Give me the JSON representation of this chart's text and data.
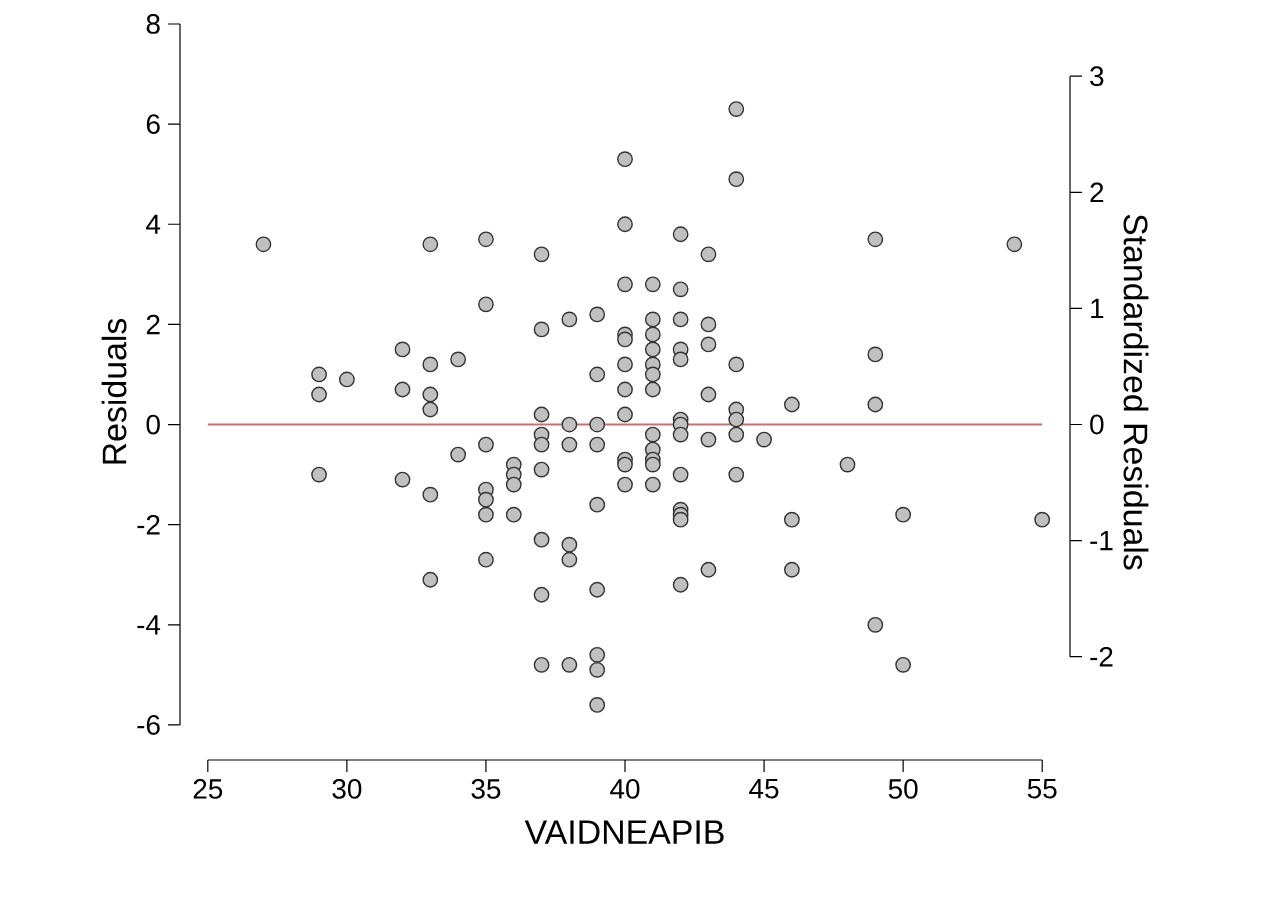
{
  "chart_data": {
    "type": "scatter",
    "xlabel": "VAIDNEAPIB",
    "ylabel": "Residuals",
    "y2label": "Standardized Residuals",
    "marker": "circle",
    "grid": false,
    "xlim": [
      24,
      56
    ],
    "ylim": [
      -6.7,
      8
    ],
    "y2lim": [
      -2.89,
      3.45
    ],
    "xticks": [
      25,
      30,
      35,
      40,
      45,
      50,
      55
    ],
    "yticks": [
      -6,
      -4,
      -2,
      0,
      2,
      4,
      6,
      8
    ],
    "y2ticks": [
      -2,
      -1,
      0,
      1,
      2,
      3
    ],
    "ref_lines": [
      {
        "axis": "y",
        "value": 0,
        "color": "#c87373"
      }
    ],
    "series": [
      {
        "color": "#c0c0c0",
        "x": [
          27,
          29,
          29,
          29,
          30,
          32,
          32,
          32,
          33,
          33,
          33,
          33,
          33,
          33,
          34,
          34,
          35,
          35,
          35,
          35,
          35,
          35,
          35,
          36,
          36,
          36,
          36,
          37,
          37,
          37,
          37,
          37,
          37,
          37,
          37,
          37,
          38,
          38,
          38,
          38,
          38,
          38,
          39,
          39,
          39,
          39,
          39,
          39,
          39,
          39,
          39,
          40,
          40,
          40,
          40,
          40,
          40,
          40,
          40,
          40,
          40,
          40,
          41,
          41,
          41,
          41,
          41,
          41,
          41,
          41,
          41,
          41,
          41,
          41,
          42,
          42,
          42,
          42,
          42,
          42,
          42,
          42,
          42,
          42,
          42,
          42,
          42,
          43,
          43,
          43,
          43,
          43,
          43,
          44,
          44,
          44,
          44,
          44,
          44,
          44,
          45,
          46,
          46,
          46,
          48,
          49,
          49,
          49,
          49,
          50,
          50,
          54,
          55
        ],
        "values": [
          3.6,
          1.0,
          0.6,
          -1.0,
          0.9,
          1.5,
          0.7,
          -1.1,
          3.6,
          1.2,
          0.6,
          0.3,
          -1.4,
          -3.1,
          1.3,
          -0.6,
          3.7,
          2.4,
          -0.4,
          -1.3,
          -1.5,
          -1.8,
          -2.7,
          -0.8,
          -1.0,
          -1.2,
          -1.8,
          3.4,
          1.9,
          0.2,
          -0.2,
          -0.4,
          -0.9,
          -2.3,
          -3.4,
          -4.8,
          2.1,
          0.0,
          -0.4,
          -2.4,
          -2.7,
          -4.8,
          2.2,
          1.0,
          0.0,
          -0.4,
          -1.6,
          -3.3,
          -4.6,
          -4.9,
          -5.6,
          5.3,
          4.0,
          2.8,
          1.8,
          1.7,
          1.2,
          0.7,
          0.2,
          -0.7,
          -0.8,
          -1.2,
          2.8,
          2.1,
          1.8,
          1.5,
          1.2,
          1.0,
          0.7,
          -0.2,
          -0.5,
          -0.7,
          -0.8,
          -1.2,
          3.8,
          2.7,
          2.1,
          1.5,
          1.3,
          0.1,
          0.0,
          -0.2,
          -1.0,
          -1.7,
          -1.8,
          -1.9,
          -3.2,
          3.4,
          2.0,
          1.6,
          0.6,
          -0.3,
          -2.9,
          6.3,
          4.9,
          1.2,
          0.3,
          0.1,
          -0.2,
          -1.0,
          -0.3,
          0.4,
          -1.9,
          -2.9,
          -0.8,
          3.7,
          1.4,
          0.4,
          -4.0,
          -1.8,
          -4.8,
          3.6,
          -1.9
        ]
      }
    ]
  }
}
